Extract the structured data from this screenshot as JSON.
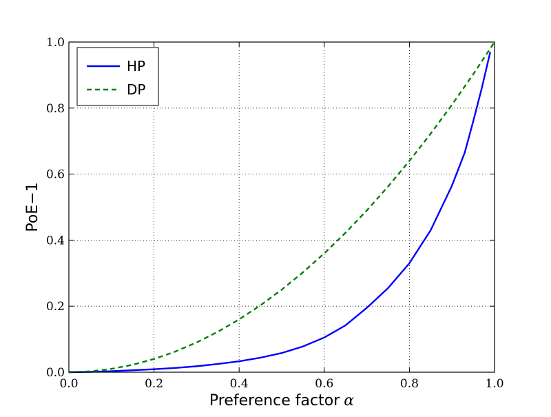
{
  "chart_data": {
    "type": "line",
    "title": "",
    "xlabel": "Preference factor",
    "xlabel_symbol": "α",
    "ylabel": "PoE−1",
    "xlim": [
      0.0,
      1.0
    ],
    "ylim": [
      0.0,
      1.0
    ],
    "x_ticks": [
      "0.0",
      "0.2",
      "0.4",
      "0.6",
      "0.8",
      "1.0"
    ],
    "y_ticks": [
      "0.0",
      "0.2",
      "0.4",
      "0.6",
      "0.8",
      "1.0"
    ],
    "grid": true,
    "legend_position": "top-left",
    "series": [
      {
        "name": "HP",
        "color": "#0000ff",
        "style": "solid",
        "x": [
          0.0,
          0.05,
          0.1,
          0.15,
          0.2,
          0.25,
          0.3,
          0.35,
          0.4,
          0.45,
          0.5,
          0.55,
          0.6,
          0.65,
          0.7,
          0.75,
          0.8,
          0.85,
          0.9,
          0.93,
          0.95,
          0.97,
          0.99
        ],
        "y": [
          0.0,
          0.001,
          0.003,
          0.006,
          0.009,
          0.013,
          0.018,
          0.025,
          0.033,
          0.044,
          0.058,
          0.078,
          0.105,
          0.142,
          0.195,
          0.255,
          0.33,
          0.43,
          0.565,
          0.665,
          0.76,
          0.86,
          0.97
        ]
      },
      {
        "name": "DP",
        "color": "#008000",
        "style": "dashed",
        "x": [
          0.0,
          0.05,
          0.1,
          0.15,
          0.2,
          0.25,
          0.3,
          0.35,
          0.4,
          0.45,
          0.5,
          0.55,
          0.6,
          0.65,
          0.7,
          0.75,
          0.8,
          0.85,
          0.9,
          0.95,
          1.0
        ],
        "y": [
          0.0,
          0.0025,
          0.01,
          0.0225,
          0.04,
          0.0625,
          0.09,
          0.1225,
          0.16,
          0.2025,
          0.25,
          0.3025,
          0.36,
          0.4225,
          0.49,
          0.5625,
          0.64,
          0.7225,
          0.81,
          0.9025,
          1.0
        ]
      }
    ]
  }
}
